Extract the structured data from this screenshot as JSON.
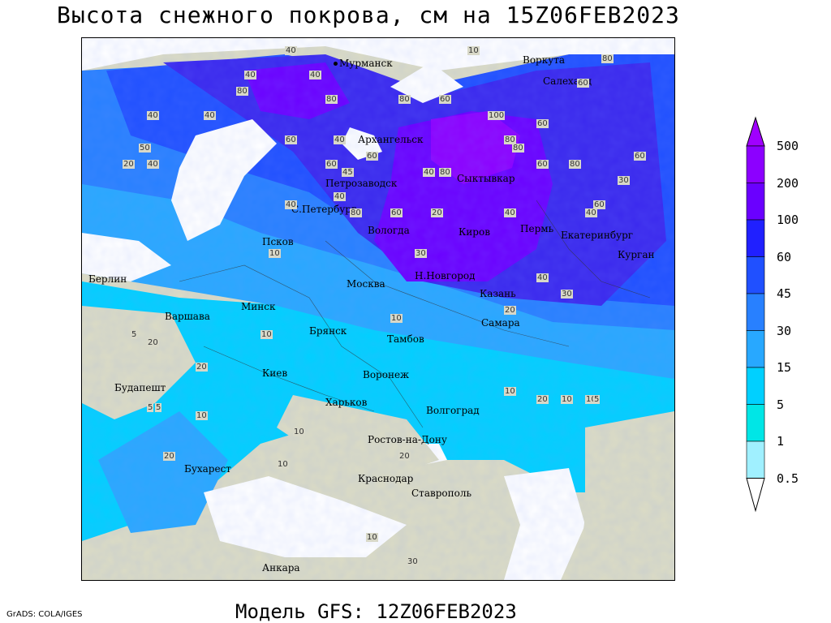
{
  "title": "Высота снежного покрова, см на 15Z06FEB2023",
  "footer": "Модель GFS: 12Z06FEB2023",
  "credit": "GrADS: COLA/IGES",
  "legend": {
    "ticks": [
      "500",
      "200",
      "100",
      "60",
      "45",
      "30",
      "15",
      "5",
      "1",
      "0.5"
    ],
    "colors": [
      "#a000ff",
      "#8c00ff",
      "#6a00ff",
      "#2020ff",
      "#2050ff",
      "#2880ff",
      "#28a8ff",
      "#00d0ff",
      "#00e6e6",
      "#a0f0ff",
      "#ffffff"
    ]
  },
  "cities": [
    {
      "name": "Мурманск"
    },
    {
      "name": "Воркута"
    },
    {
      "name": "Салехард"
    },
    {
      "name": "Архангельск"
    },
    {
      "name": "Сыктывкар"
    },
    {
      "name": "Петрозаводск"
    },
    {
      "name": "С.Петербург"
    },
    {
      "name": "Вологда"
    },
    {
      "name": "Киров"
    },
    {
      "name": "Пермь"
    },
    {
      "name": "Екатеринбург"
    },
    {
      "name": "Курган"
    },
    {
      "name": "Псков"
    },
    {
      "name": "Берлин"
    },
    {
      "name": "Москва"
    },
    {
      "name": "Н.Новгород"
    },
    {
      "name": "Казань"
    },
    {
      "name": "Минск"
    },
    {
      "name": "Варшава"
    },
    {
      "name": "Брянск"
    },
    {
      "name": "Самара"
    },
    {
      "name": "Тамбов"
    },
    {
      "name": "Киев"
    },
    {
      "name": "Воронеж"
    },
    {
      "name": "Будапешт"
    },
    {
      "name": "Харьков"
    },
    {
      "name": "Волгоград"
    },
    {
      "name": "Ростов-на-Дону"
    },
    {
      "name": "Бухарест"
    },
    {
      "name": "Краснодар"
    },
    {
      "name": "Ставрополь"
    },
    {
      "name": "Анкара"
    }
  ],
  "contour_labels": [
    "40",
    "10",
    "40",
    "40",
    "80",
    "80",
    "40",
    "40",
    "80",
    "60",
    "80",
    "60",
    "100",
    "80",
    "60",
    "60",
    "50",
    "40",
    "60",
    "40",
    "20",
    "80",
    "80",
    "40",
    "60",
    "80",
    "60",
    "80",
    "40",
    "60",
    "40",
    "30",
    "30",
    "60",
    "40",
    "40",
    "20",
    "10",
    "60",
    "40",
    "45",
    "30",
    "20",
    "10",
    "5",
    "10",
    "20",
    "5",
    "10",
    "20",
    "10",
    "10",
    "5",
    "10",
    "5",
    "20",
    "10",
    "20",
    "10",
    "10",
    "30",
    "20"
  ]
}
